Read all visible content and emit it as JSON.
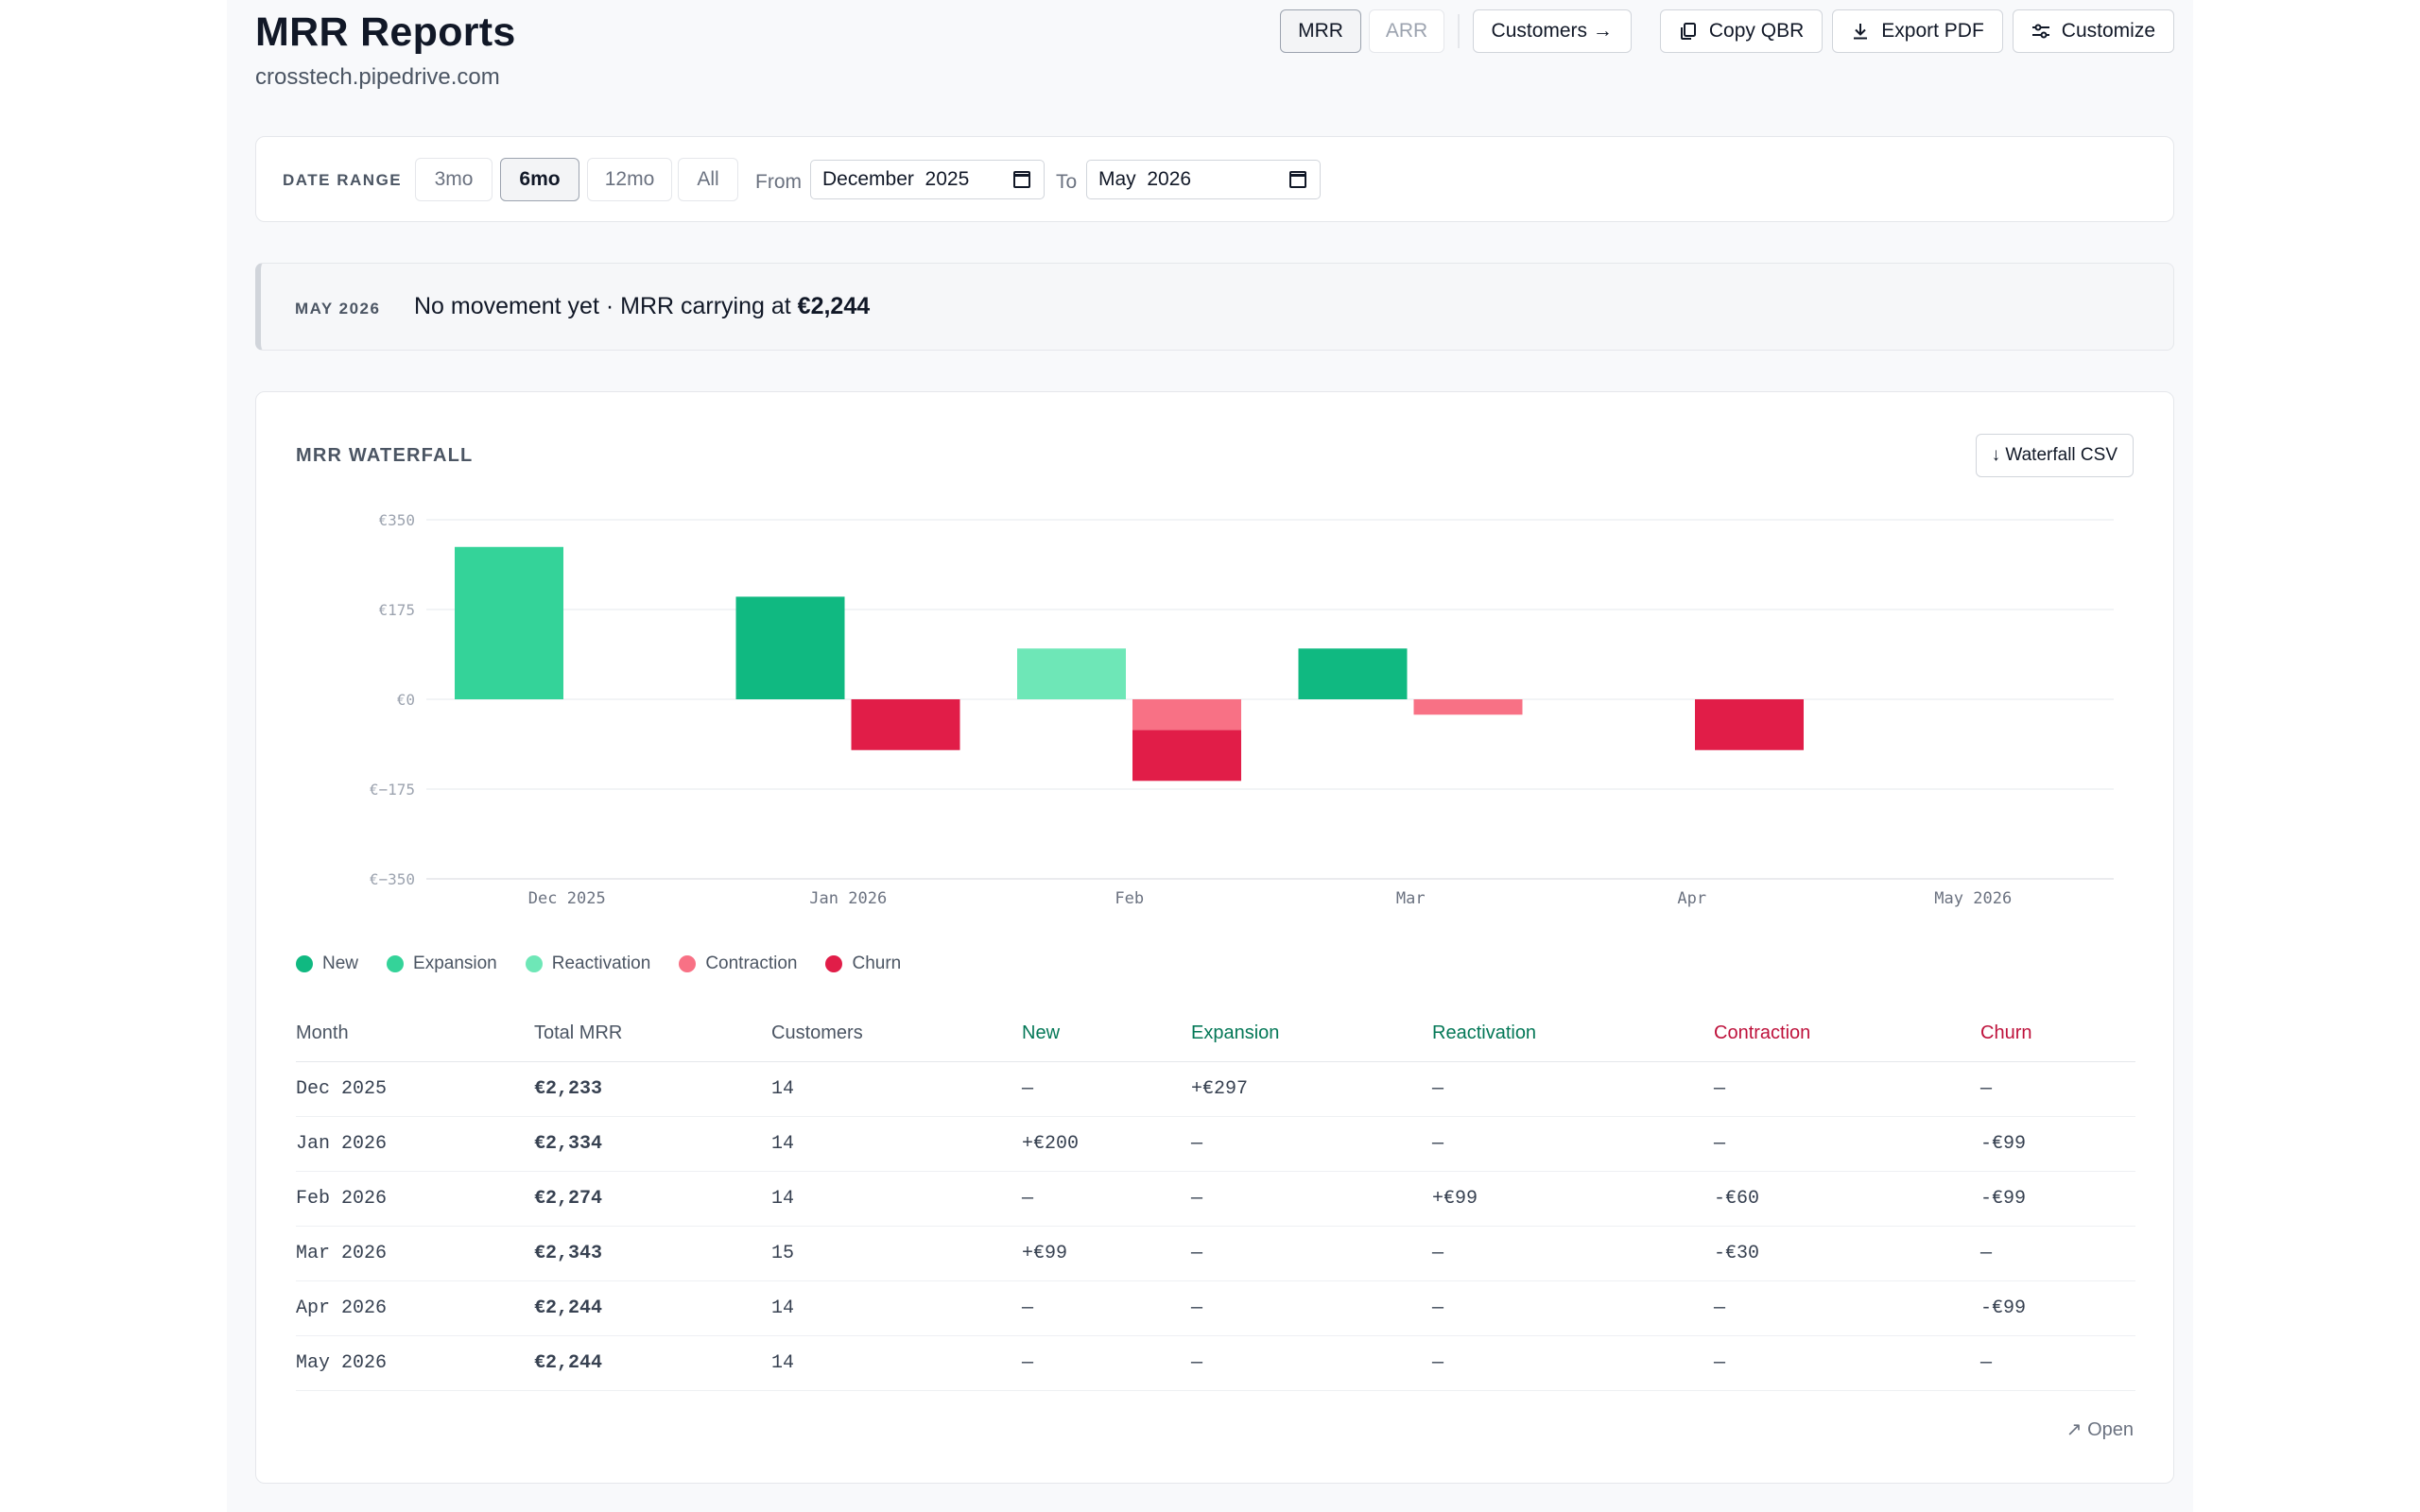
{
  "header": {
    "title": "MRR Reports",
    "subtitle": "crosstech.pipedrive.com",
    "toggle": {
      "mrr": "MRR",
      "arr": "ARR",
      "selected": "MRR"
    },
    "customers_label": "Customers →",
    "copy_qbr_label": "Copy QBR",
    "export_pdf_label": "Export PDF",
    "customize_label": "Customize"
  },
  "date_range": {
    "label": "DATE RANGE",
    "presets": [
      "3mo",
      "6mo",
      "12mo",
      "All"
    ],
    "active_preset": "6mo",
    "from_label": "From",
    "from_value": "December  2025",
    "to_label": "To",
    "to_value": "May  2026"
  },
  "banner": {
    "month": "MAY 2026",
    "text_prefix": "No movement yet · MRR carrying at ",
    "value": "€2,244"
  },
  "chart_section": {
    "title": "MRR WATERFALL",
    "csv_label": "↓ Waterfall CSV",
    "open_label": "↗ Open"
  },
  "colors": {
    "new": "#10b981",
    "expansion": "#34d399",
    "reactivation": "#6ee7b7",
    "contraction": "#f87185",
    "churn": "#e11d48"
  },
  "chart_data": {
    "type": "bar",
    "categories": [
      "Dec 2025",
      "Jan 2026",
      "Feb",
      "Mar",
      "Apr",
      "May 2026"
    ],
    "ylim": [
      -350,
      350
    ],
    "yticks": [
      "€350",
      "€175",
      "€0",
      "€−175",
      "€−350"
    ],
    "ytick_values": [
      350,
      175,
      0,
      -175,
      -350
    ],
    "legend": [
      "New",
      "Expansion",
      "Reactivation",
      "Contraction",
      "Churn"
    ],
    "series": [
      {
        "name": "New",
        "values": [
          0,
          200,
          0,
          99,
          0,
          0
        ]
      },
      {
        "name": "Expansion",
        "values": [
          297,
          0,
          0,
          0,
          0,
          0
        ]
      },
      {
        "name": "Reactivation",
        "values": [
          0,
          0,
          99,
          0,
          0,
          0
        ]
      },
      {
        "name": "Contraction",
        "values": [
          0,
          0,
          -60,
          -30,
          0,
          0
        ]
      },
      {
        "name": "Churn",
        "values": [
          0,
          -99,
          -99,
          0,
          -99,
          0
        ]
      }
    ]
  },
  "table": {
    "columns": [
      "Month",
      "Total MRR",
      "Customers",
      "New",
      "Expansion",
      "Reactivation",
      "Contraction",
      "Churn"
    ],
    "rows": [
      [
        "Dec 2025",
        "€2,233",
        "14",
        "—",
        "+€297",
        "—",
        "—",
        "—"
      ],
      [
        "Jan 2026",
        "€2,334",
        "14",
        "+€200",
        "—",
        "—",
        "—",
        "-€99"
      ],
      [
        "Feb 2026",
        "€2,274",
        "14",
        "—",
        "—",
        "+€99",
        "-€60",
        "-€99"
      ],
      [
        "Mar 2026",
        "€2,343",
        "15",
        "+€99",
        "—",
        "—",
        "-€30",
        "—"
      ],
      [
        "Apr 2026",
        "€2,244",
        "14",
        "—",
        "—",
        "—",
        "—",
        "-€99"
      ],
      [
        "May 2026",
        "€2,244",
        "14",
        "—",
        "—",
        "—",
        "—",
        "—"
      ]
    ]
  }
}
